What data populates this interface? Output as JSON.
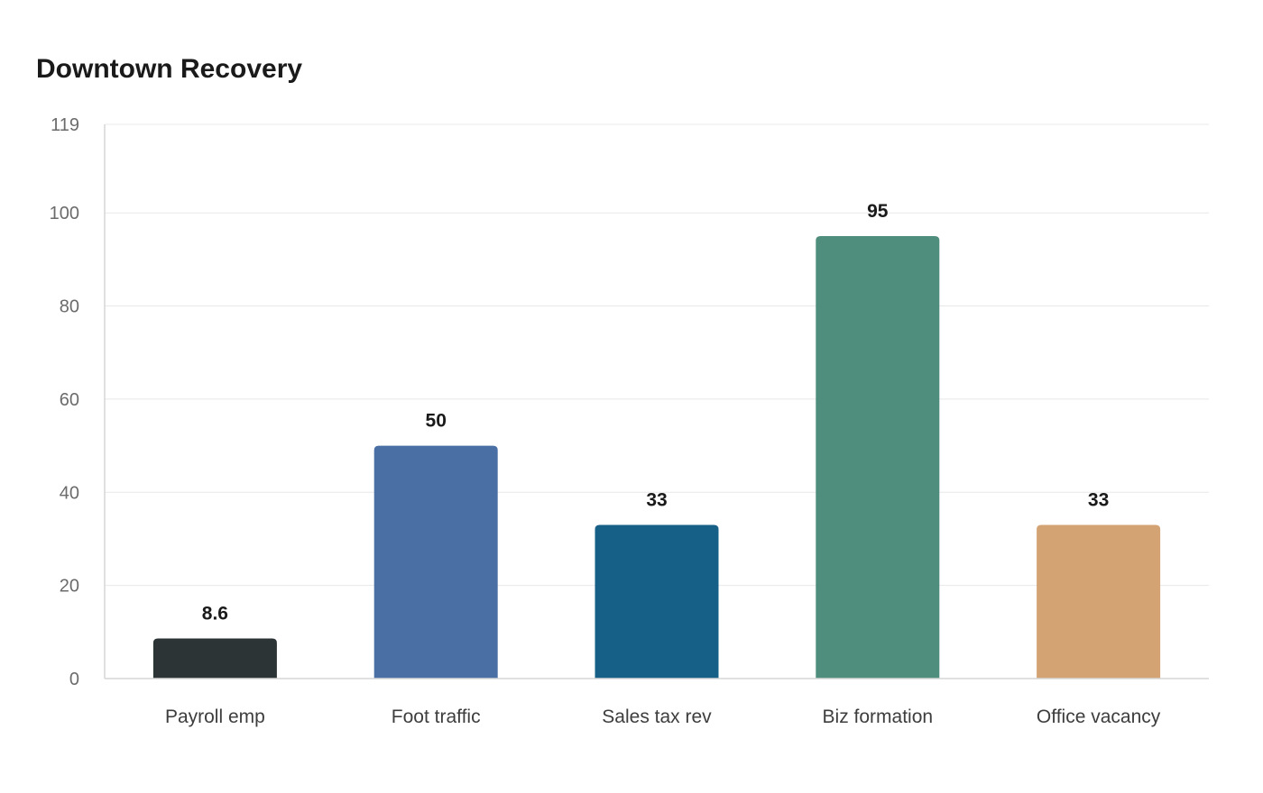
{
  "chart_data": {
    "type": "bar",
    "title": "Downtown Recovery",
    "xlabel": "",
    "ylabel": "",
    "categories": [
      "Payroll emp",
      "Foot traffic",
      "Sales tax rev",
      "Biz formation",
      "Office vacancy"
    ],
    "values": [
      8.6,
      50,
      33,
      95,
      33
    ],
    "value_labels": [
      "8.6",
      "50",
      "33",
      "95",
      "33"
    ],
    "colors": [
      "#2d3436",
      "#4a6fa5",
      "#166088",
      "#4f8d7c",
      "#d4a373"
    ],
    "ylim": [
      0,
      119
    ],
    "yticks": [
      0,
      20,
      40,
      60,
      80,
      100,
      119
    ],
    "grid": true,
    "legend": "none"
  }
}
